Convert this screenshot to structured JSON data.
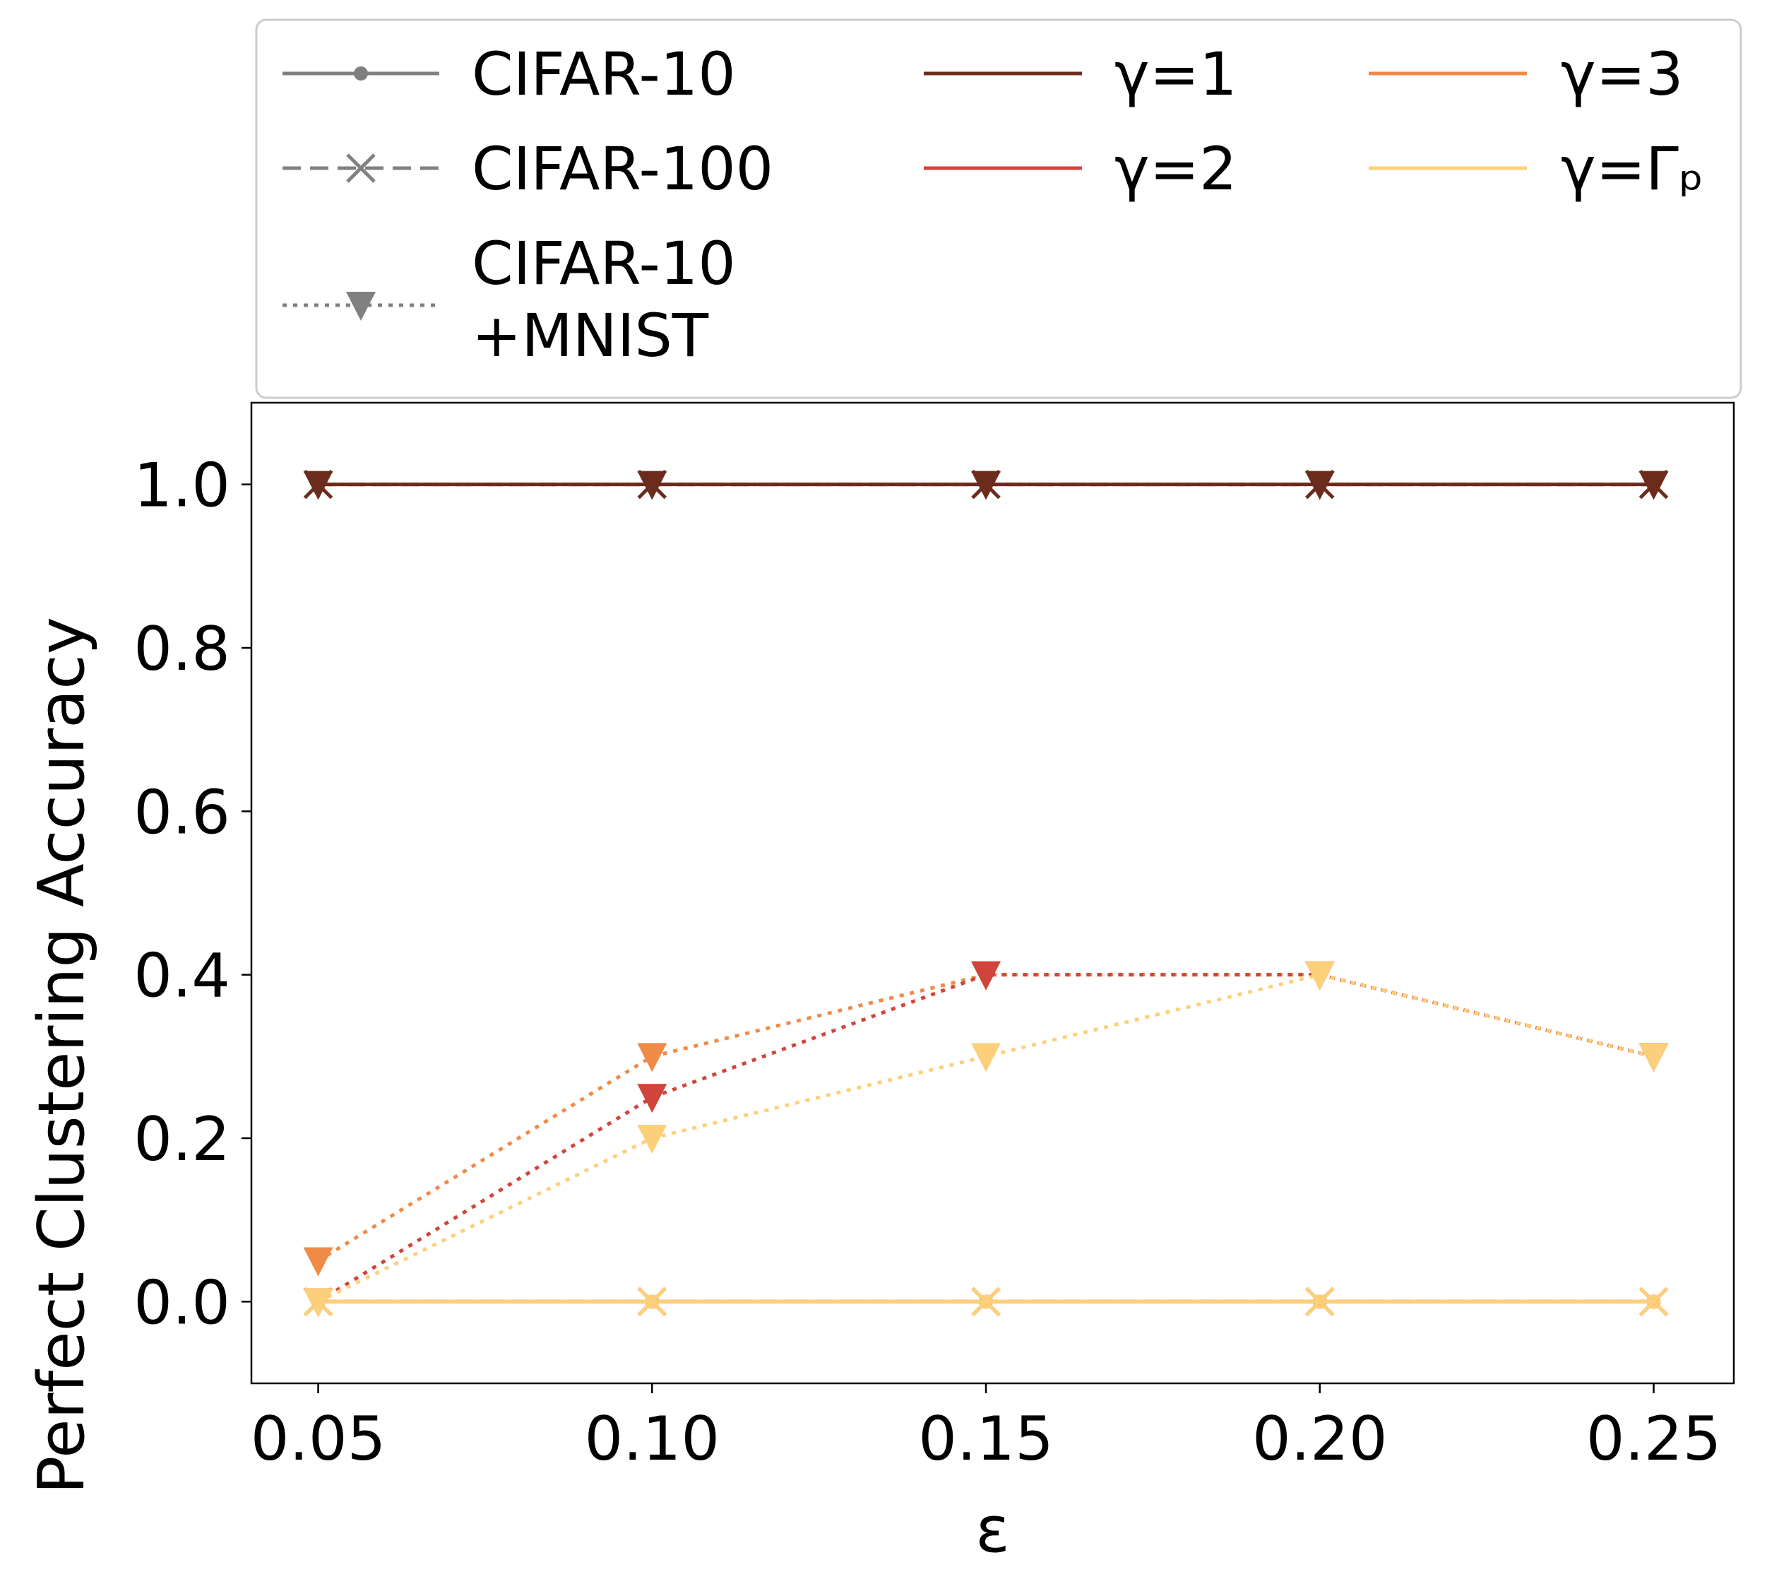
{
  "chart_data": {
    "type": "line",
    "title": "",
    "xlabel": "ε",
    "ylabel": "Perfect Clustering Accuracy",
    "x": [
      0.05,
      0.1,
      0.15,
      0.2,
      0.25
    ],
    "x_tick_labels": [
      "0.05",
      "0.10",
      "0.15",
      "0.20",
      "0.25"
    ],
    "y_ticks": [
      0.0,
      0.2,
      0.4,
      0.6,
      0.8,
      1.0
    ],
    "y_tick_labels": [
      "0.0",
      "0.2",
      "0.4",
      "0.6",
      "0.8",
      "1.0"
    ],
    "xlim": [
      0.04,
      0.262
    ],
    "ylim": [
      -0.1,
      1.1
    ],
    "grid": false,
    "legend_position": "top",
    "legend": {
      "datasets": [
        {
          "key": "cifar10",
          "label": "CIFAR-10",
          "lines": [
            "CIFAR-10"
          ],
          "dash": "solid",
          "marker": "dot"
        },
        {
          "key": "cifar100",
          "label": "CIFAR-100",
          "lines": [
            "CIFAR-100"
          ],
          "dash": "dashed",
          "marker": "x"
        },
        {
          "key": "cifar10mnist",
          "label": "CIFAR-10 +MNIST",
          "lines": [
            "CIFAR-10",
            "+MNIST"
          ],
          "dash": "dotted",
          "marker": "triangle-down"
        }
      ],
      "gammas": [
        {
          "key": "g1",
          "label": "γ=1",
          "color": "#6b2c1e"
        },
        {
          "key": "g2",
          "label": "γ=2",
          "color": "#d1443b"
        },
        {
          "key": "g3",
          "label": "γ=3",
          "color": "#ef8a47"
        },
        {
          "key": "gp",
          "label": "γ=Γₚ",
          "color": "#fcd07a"
        }
      ]
    },
    "series": [
      {
        "name": "CIFAR-10, γ=1",
        "dataset": "cifar10",
        "gamma": "g1",
        "values": [
          1.0,
          1.0,
          1.0,
          1.0,
          1.0
        ]
      },
      {
        "name": "CIFAR-10, γ=2",
        "dataset": "cifar10",
        "gamma": "g2",
        "values": [
          0.0,
          0.0,
          0.0,
          0.0,
          0.0
        ]
      },
      {
        "name": "CIFAR-10, γ=3",
        "dataset": "cifar10",
        "gamma": "g3",
        "values": [
          0.0,
          0.0,
          0.0,
          0.0,
          0.0
        ]
      },
      {
        "name": "CIFAR-10, γ=Γp",
        "dataset": "cifar10",
        "gamma": "gp",
        "values": [
          0.0,
          0.0,
          0.0,
          0.0,
          0.0
        ]
      },
      {
        "name": "CIFAR-100, γ=1",
        "dataset": "cifar100",
        "gamma": "g1",
        "values": [
          1.0,
          1.0,
          1.0,
          1.0,
          1.0
        ]
      },
      {
        "name": "CIFAR-100, γ=2",
        "dataset": "cifar100",
        "gamma": "g2",
        "values": [
          0.0,
          0.0,
          0.0,
          0.0,
          0.0
        ]
      },
      {
        "name": "CIFAR-100, γ=3",
        "dataset": "cifar100",
        "gamma": "g3",
        "values": [
          0.0,
          0.0,
          0.0,
          0.0,
          0.0
        ]
      },
      {
        "name": "CIFAR-100, γ=Γp",
        "dataset": "cifar100",
        "gamma": "gp",
        "values": [
          0.0,
          0.0,
          0.0,
          0.0,
          0.0
        ]
      },
      {
        "name": "CIFAR-10+MNIST, γ=3",
        "dataset": "cifar10mnist",
        "gamma": "g3",
        "values": [
          0.05,
          0.3,
          0.4,
          0.4,
          0.3
        ]
      },
      {
        "name": "CIFAR-10+MNIST, γ=2",
        "dataset": "cifar10mnist",
        "gamma": "g2",
        "values": [
          0.0,
          0.25,
          0.4,
          0.4,
          0.3
        ]
      },
      {
        "name": "CIFAR-10+MNIST, γ=Γp",
        "dataset": "cifar10mnist",
        "gamma": "gp",
        "values": [
          0.0,
          0.2,
          0.3,
          0.4,
          0.3
        ]
      },
      {
        "name": "CIFAR-10+MNIST, γ=1",
        "dataset": "cifar10mnist",
        "gamma": "g1",
        "values": [
          1.0,
          1.0,
          1.0,
          1.0,
          1.0
        ]
      }
    ]
  }
}
